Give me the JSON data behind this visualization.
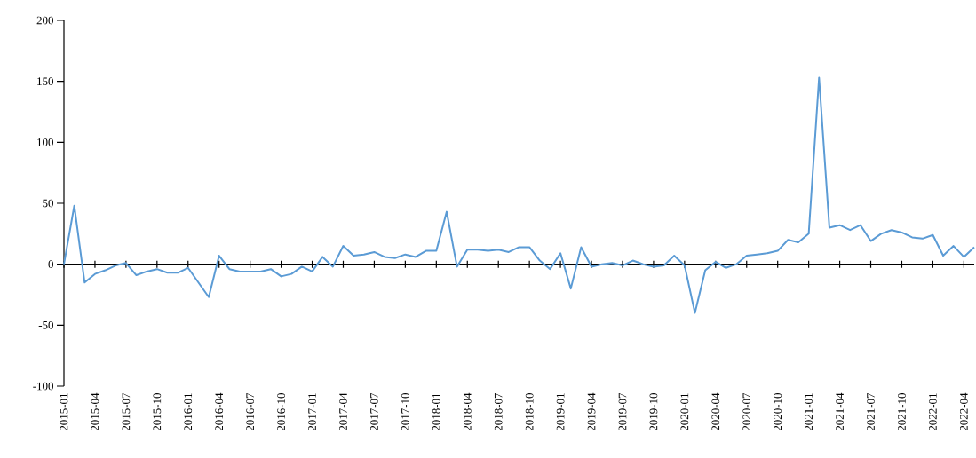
{
  "chart_data": {
    "type": "line",
    "color": "#5b9bd5",
    "categories": [
      "2015-01",
      null,
      null,
      "2015-04",
      null,
      null,
      "2015-07",
      null,
      null,
      "2015-10",
      null,
      null,
      "2016-01",
      null,
      null,
      "2016-04",
      null,
      null,
      "2016-07",
      null,
      null,
      "2016-10",
      null,
      null,
      "2017-01",
      null,
      null,
      "2017-04",
      null,
      null,
      "2017-07",
      null,
      null,
      "2017-10",
      null,
      null,
      "2018-01",
      null,
      null,
      "2018-04",
      null,
      null,
      "2018-07",
      null,
      null,
      "2018-10",
      null,
      null,
      "2019-01",
      null,
      null,
      "2019-04",
      null,
      null,
      "2019-07",
      null,
      null,
      "2019-10",
      null,
      null,
      "2020-01",
      null,
      null,
      "2020-04",
      null,
      null,
      "2020-07",
      null,
      null,
      "2020-10",
      null,
      null,
      "2021-01",
      null,
      null,
      "2021-04",
      null,
      null,
      "2021-07",
      null,
      null,
      "2021-10",
      null,
      null,
      "2022-01",
      null,
      null,
      "2022-04",
      null
    ],
    "values": [
      0,
      48,
      -15,
      -8,
      -5,
      -1,
      1,
      -9,
      -6,
      -4,
      -7,
      -7,
      -3,
      -15,
      -27,
      7,
      -4,
      -6,
      -6,
      -6,
      -4,
      -10,
      -8,
      -2,
      -6,
      6,
      -2,
      15,
      7,
      8,
      10,
      6,
      5,
      8,
      6,
      11,
      11,
      43,
      -2,
      12,
      12,
      11,
      12,
      10,
      14,
      14,
      3,
      -4,
      9,
      -20,
      14,
      -2,
      0,
      1,
      -1,
      3,
      0,
      -2,
      -1,
      7,
      -1,
      -40,
      -5,
      2,
      -3,
      0,
      7,
      8,
      9,
      11,
      20,
      18,
      25,
      153,
      30,
      32,
      28,
      32,
      19,
      25,
      28,
      26,
      22,
      21,
      24,
      7,
      15,
      6,
      14
    ],
    "ylim": [
      -100,
      200
    ],
    "yticks": [
      -100,
      -50,
      0,
      50,
      100,
      150,
      200
    ]
  }
}
